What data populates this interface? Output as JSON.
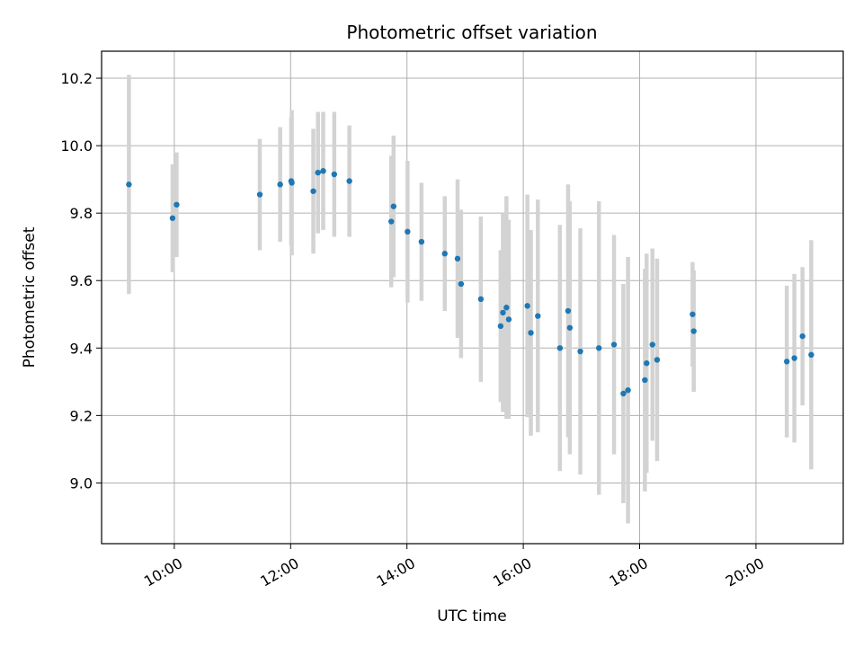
{
  "chart_data": {
    "type": "scatter",
    "title": "Photometric offset variation",
    "xlabel": "UTC time",
    "ylabel": "Photometric offset",
    "xlim": [
      8.75,
      21.5
    ],
    "ylim": [
      8.82,
      10.28
    ],
    "x_tick_values": [
      10,
      12,
      14,
      16,
      18,
      20
    ],
    "x_tick_labels": [
      "10:00",
      "12:00",
      "14:00",
      "16:00",
      "18:00",
      "20:00"
    ],
    "y_tick_values": [
      9.0,
      9.2,
      9.4,
      9.6,
      9.8,
      10.0,
      10.2
    ],
    "y_tick_labels": [
      "9.0",
      "9.2",
      "9.4",
      "9.6",
      "9.8",
      "10.0",
      "10.2"
    ],
    "grid": true,
    "x_unit": "hours UTC",
    "marker_color": "#1f77b4",
    "errorbar_color": "#d3d3d3",
    "series": [
      {
        "name": "offset",
        "x": [
          9.22,
          9.97,
          10.04,
          11.47,
          11.82,
          12.01,
          12.02,
          12.39,
          12.47,
          12.56,
          12.75,
          13.01,
          13.73,
          13.77,
          14.01,
          14.25,
          14.65,
          14.87,
          14.93,
          15.27,
          15.61,
          15.65,
          15.71,
          15.75,
          16.07,
          16.13,
          16.25,
          16.63,
          16.77,
          16.8,
          16.98,
          17.3,
          17.56,
          17.72,
          17.8,
          18.09,
          18.12,
          18.22,
          18.3,
          18.91,
          18.93,
          20.53,
          20.66,
          20.8,
          20.95
        ],
        "y": [
          9.885,
          9.785,
          9.825,
          9.855,
          9.885,
          9.895,
          9.89,
          9.865,
          9.92,
          9.925,
          9.915,
          9.895,
          9.775,
          9.82,
          9.745,
          9.715,
          9.68,
          9.665,
          9.59,
          9.545,
          9.465,
          9.505,
          9.52,
          9.485,
          9.525,
          9.445,
          9.495,
          9.4,
          9.51,
          9.46,
          9.39,
          9.4,
          9.41,
          9.265,
          9.275,
          9.305,
          9.355,
          9.41,
          9.365,
          9.5,
          9.45,
          9.36,
          9.37,
          9.435,
          9.38
        ],
        "err": [
          0.325,
          0.16,
          0.155,
          0.165,
          0.17,
          0.19,
          0.215,
          0.185,
          0.18,
          0.175,
          0.185,
          0.165,
          0.195,
          0.21,
          0.21,
          0.175,
          0.17,
          0.235,
          0.22,
          0.245,
          0.225,
          0.295,
          0.33,
          0.295,
          0.33,
          0.305,
          0.345,
          0.365,
          0.375,
          0.375,
          0.365,
          0.435,
          0.325,
          0.325,
          0.395,
          0.33,
          0.325,
          0.285,
          0.3,
          0.155,
          0.18,
          0.225,
          0.25,
          0.205,
          0.34
        ]
      }
    ]
  }
}
